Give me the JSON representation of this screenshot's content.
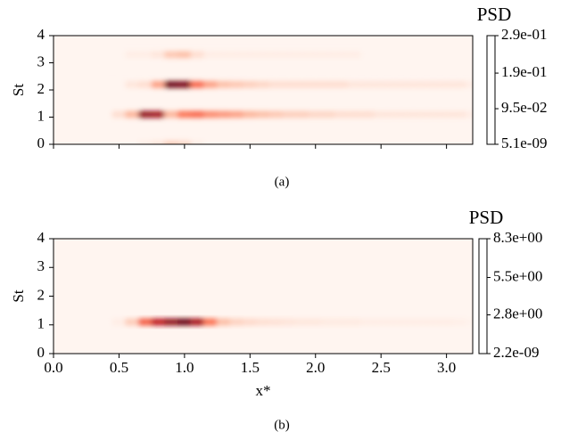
{
  "chart_data": [
    {
      "type": "heatmap",
      "caption": "(a)",
      "ylabel": "St",
      "colorbar_label": "PSD",
      "xlim": [
        0,
        3.2
      ],
      "ylim": [
        0,
        4
      ],
      "xticks": [
        0,
        0.5,
        1,
        1.5,
        2,
        2.5,
        3
      ],
      "xtick_labels": false,
      "yticks": [
        0,
        1,
        2,
        3,
        4
      ],
      "colormap": "Reds",
      "clim": [
        5.1e-09,
        0.29
      ],
      "cticks": [
        {
          "value": 5.1e-09,
          "label": "5.1e-09"
        },
        {
          "value": 0.095,
          "label": "9.5e-02"
        },
        {
          "value": 0.19,
          "label": "1.9e-01"
        },
        {
          "value": 0.29,
          "label": "2.9e-01"
        }
      ],
      "x": [
        0.4,
        0.5,
        0.6,
        0.7,
        0.8,
        0.9,
        1.0,
        1.1,
        1.2,
        1.3,
        1.4,
        1.5,
        1.6,
        1.7,
        1.8,
        1.9,
        2.0,
        2.1,
        2.2,
        2.3,
        2.4,
        2.5,
        2.6,
        2.7,
        2.8,
        2.9,
        3.0,
        3.1,
        3.2
      ],
      "y": [
        0,
        1.1,
        2.2,
        3.3
      ],
      "z": [
        [
          0,
          0,
          0,
          0.01,
          0.02,
          0.05,
          0.04,
          0.01,
          0,
          0,
          0,
          0,
          0,
          0,
          0,
          0,
          0,
          0,
          0,
          0,
          0,
          0,
          0,
          0,
          0,
          0,
          0,
          0,
          0
        ],
        [
          0,
          0.03,
          0.08,
          0.26,
          0.25,
          0.08,
          0.14,
          0.15,
          0.12,
          0.11,
          0.1,
          0.08,
          0.07,
          0.06,
          0.05,
          0.05,
          0.04,
          0.04,
          0.03,
          0.03,
          0.03,
          0.02,
          0.02,
          0.02,
          0.02,
          0.02,
          0.02,
          0.02,
          0.01
        ],
        [
          0,
          0,
          0.02,
          0.03,
          0.1,
          0.29,
          0.28,
          0.15,
          0.1,
          0.07,
          0.06,
          0.05,
          0.04,
          0.03,
          0.03,
          0.03,
          0.03,
          0.03,
          0.03,
          0.02,
          0.02,
          0.02,
          0.02,
          0.02,
          0.02,
          0.02,
          0.02,
          0.02,
          0.01
        ],
        [
          0,
          0,
          0.01,
          0.01,
          0.02,
          0.06,
          0.07,
          0.03,
          0.01,
          0.01,
          0.01,
          0.01,
          0.01,
          0.01,
          0.01,
          0.01,
          0.01,
          0.01,
          0.01,
          0.01,
          0,
          0,
          0,
          0,
          0,
          0,
          0,
          0,
          0
        ]
      ]
    },
    {
      "type": "heatmap",
      "caption": "(b)",
      "ylabel": "St",
      "xlabel": "x*",
      "colorbar_label": "PSD",
      "xlim": [
        0,
        3.2
      ],
      "ylim": [
        0,
        4
      ],
      "xticks": [
        {
          "value": 0,
          "label": "0.0"
        },
        0.5,
        {
          "value": 1,
          "label": "1.0"
        },
        1.5,
        {
          "value": 2,
          "label": "2.0"
        },
        2.5,
        {
          "value": 3,
          "label": "3.0"
        }
      ],
      "xtick_labels": true,
      "yticks": [
        0,
        1,
        2,
        3,
        4
      ],
      "colormap": "Reds",
      "clim": [
        2.2e-09,
        8.3
      ],
      "cticks": [
        {
          "value": 2.2e-09,
          "label": "2.2e-09"
        },
        {
          "value": 2.8,
          "label": "2.8e+00"
        },
        {
          "value": 5.5,
          "label": "5.5e+00"
        },
        {
          "value": 8.3,
          "label": "8.3e+00"
        }
      ],
      "x": [
        0.4,
        0.5,
        0.6,
        0.7,
        0.8,
        0.9,
        1.0,
        1.1,
        1.2,
        1.3,
        1.4,
        1.5,
        1.6,
        1.7,
        1.8,
        1.9,
        2.0,
        2.1,
        2.2,
        2.3,
        2.4,
        2.5,
        2.6,
        2.7,
        2.8,
        2.9,
        3.0,
        3.1,
        3.2
      ],
      "y": [
        1.1
      ],
      "z": [
        [
          0,
          0.3,
          1.5,
          4.5,
          6.5,
          7.5,
          8.3,
          7,
          4,
          2,
          1.3,
          1,
          0.8,
          0.7,
          0.6,
          0.5,
          0.5,
          0.4,
          0.4,
          0.4,
          0.3,
          0.3,
          0.3,
          0.3,
          0.3,
          0.3,
          0.3,
          0.2,
          0.1
        ]
      ]
    }
  ]
}
